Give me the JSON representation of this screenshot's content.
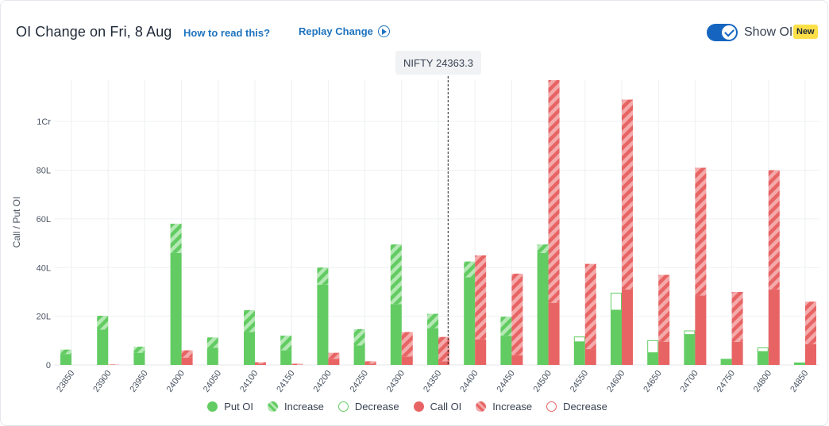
{
  "header": {
    "title": "OI Change on Fri, 8 Aug",
    "how_to_read": "How to read this?",
    "replay": "Replay Change",
    "show_oi": "Show OI",
    "new_badge": "New"
  },
  "spot_label": "NIFTY 24363.3",
  "colors": {
    "put": "#62cc62",
    "put_light": "#b4e8b4",
    "call": "#e86464",
    "call_light": "#f4aaaa",
    "link": "#1e73be",
    "toggle": "#1565c0"
  },
  "legend": [
    {
      "label": "Put OI",
      "style": "put-solid"
    },
    {
      "label": "Increase",
      "style": "put-hatch"
    },
    {
      "label": "Decrease",
      "style": "put-outline"
    },
    {
      "label": "Call OI",
      "style": "call-solid"
    },
    {
      "label": "Increase",
      "style": "call-hatch"
    },
    {
      "label": "Decrease",
      "style": "call-outline"
    }
  ],
  "chart_data": {
    "type": "bar",
    "ylabel": "Call / Put OI",
    "yticks": [
      {
        "v": 0,
        "l": "0"
      },
      {
        "v": 20,
        "l": "20L"
      },
      {
        "v": 40,
        "l": "40L"
      },
      {
        "v": 60,
        "l": "60L"
      },
      {
        "v": 80,
        "l": "80L"
      },
      {
        "v": 100,
        "l": "1Cr"
      }
    ],
    "ylim": [
      0,
      117
    ],
    "unit": "L",
    "spot": 24363.3,
    "categories": [
      "23850",
      "23900",
      "23950",
      "24000",
      "24050",
      "24100",
      "24150",
      "24200",
      "24250",
      "24300",
      "24350",
      "24400",
      "24450",
      "24500",
      "24550",
      "24600",
      "24650",
      "24700",
      "24750",
      "24800",
      "24850"
    ],
    "put": {
      "base": [
        4.5,
        14.5,
        5,
        46,
        7,
        13.5,
        6,
        33,
        8,
        25,
        15,
        36,
        12,
        46,
        9.5,
        22.5,
        5,
        12.5,
        2.5,
        5.5,
        1
      ],
      "increase": [
        1.8,
        5.7,
        2.5,
        12,
        4.3,
        9,
        6,
        7,
        6.7,
        24.5,
        6,
        6.5,
        7.8,
        3.5,
        0,
        0,
        0,
        0,
        0,
        0,
        0
      ],
      "decrease": [
        0,
        0,
        0,
        0,
        0,
        0,
        0,
        0,
        0,
        0,
        0,
        0,
        0,
        0,
        2,
        7,
        5,
        1.5,
        0,
        1.5,
        0
      ]
    },
    "call": {
      "base": [
        0,
        0,
        0,
        3,
        0,
        0.5,
        0,
        2.5,
        0.5,
        3.5,
        1.5,
        10.5,
        4,
        25.5,
        6.5,
        31,
        9.5,
        28.5,
        9.5,
        31,
        8.5
      ],
      "increase": [
        0,
        0.2,
        0,
        3,
        0,
        0.6,
        0.5,
        2.5,
        1,
        10,
        10,
        34.5,
        33.5,
        91.5,
        35,
        78,
        27.5,
        52.5,
        20.5,
        49,
        17.5
      ],
      "decrease": [
        0,
        0,
        0,
        0,
        0,
        0,
        0,
        0,
        0,
        0,
        0,
        0,
        0,
        0,
        0,
        0,
        0,
        0,
        0,
        0,
        0
      ]
    }
  }
}
